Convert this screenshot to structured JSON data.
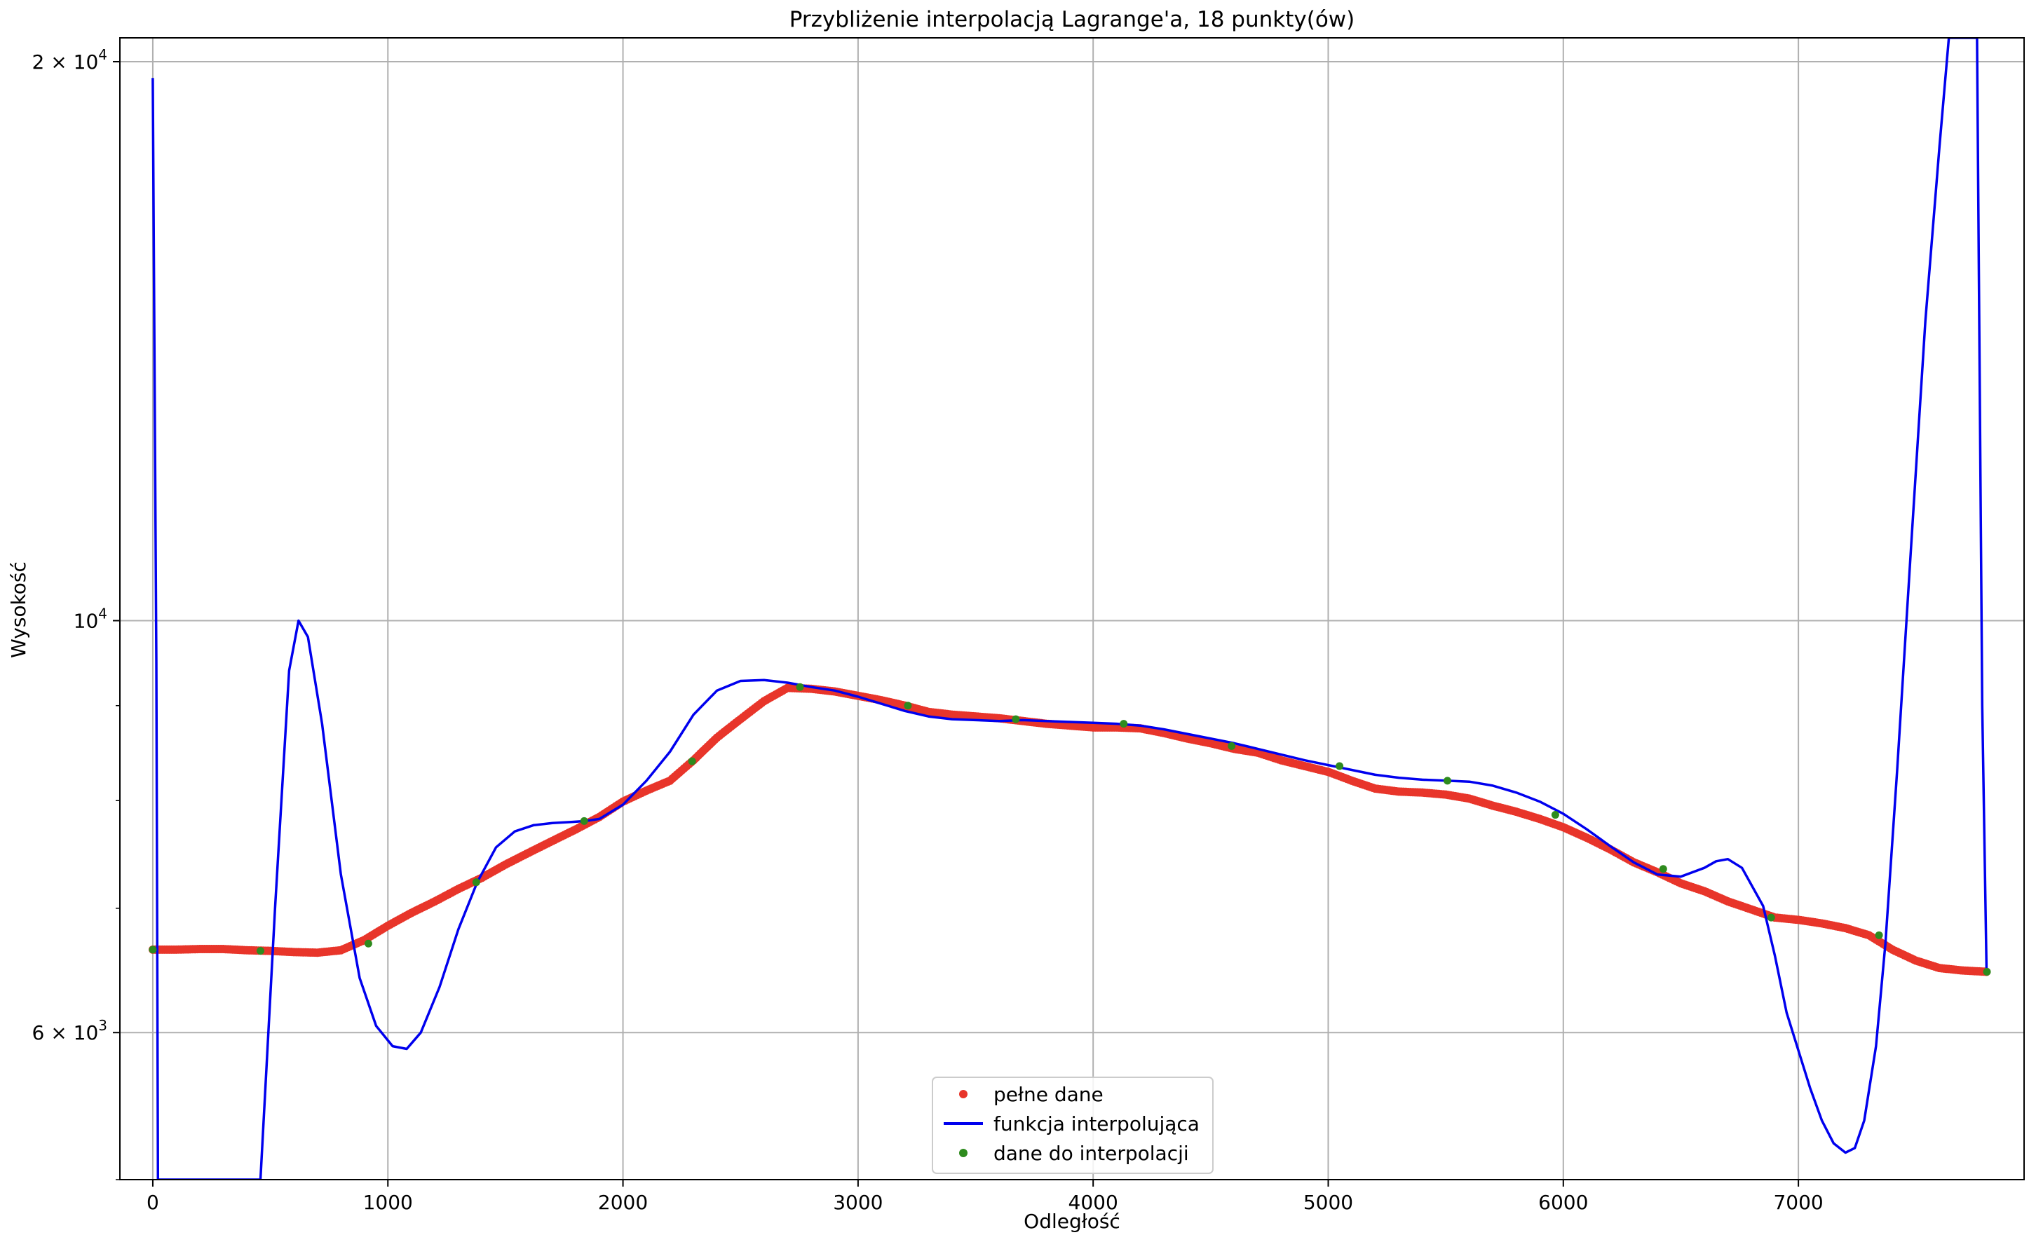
{
  "chart_data": {
    "type": "line",
    "title": "Przybliżenie interpolacją Lagrange'a, 18 punkty(ów)",
    "xlabel": "Odległość",
    "ylabel": "Wysokość",
    "y_scale": "log",
    "xlim": [
      -140,
      7960
    ],
    "ylim": [
      5000,
      20600
    ],
    "grid": true,
    "legend_position": "lower-center",
    "x_ticks": [
      {
        "value": 0,
        "label": "0"
      },
      {
        "value": 1000,
        "label": "1000"
      },
      {
        "value": 2000,
        "label": "2000"
      },
      {
        "value": 3000,
        "label": "3000"
      },
      {
        "value": 4000,
        "label": "4000"
      },
      {
        "value": 5000,
        "label": "5000"
      },
      {
        "value": 6000,
        "label": "6000"
      },
      {
        "value": 7000,
        "label": "7000"
      }
    ],
    "y_ticks": [
      {
        "value": 6000,
        "base": "6 × 10",
        "exp": "3"
      },
      {
        "value": 10000,
        "base": "10",
        "exp": "4"
      },
      {
        "value": 20000,
        "base": "2 × 10",
        "exp": "4"
      }
    ],
    "colors": {
      "full": "#e8352a",
      "interp": "#0000ee",
      "nodes": "#2e8b1e"
    },
    "series": [
      {
        "name": "pełne dane",
        "kind": "points",
        "x": [
          0,
          100,
          200,
          300,
          400,
          500,
          600,
          700,
          800,
          900,
          1000,
          1100,
          1200,
          1300,
          1400,
          1500,
          1600,
          1700,
          1800,
          1900,
          2000,
          2100,
          2200,
          2300,
          2400,
          2500,
          2600,
          2700,
          2800,
          2900,
          3000,
          3100,
          3200,
          3300,
          3400,
          3500,
          3600,
          3700,
          3800,
          3900,
          4000,
          4100,
          4200,
          4300,
          4400,
          4500,
          4600,
          4700,
          4800,
          4900,
          5000,
          5100,
          5200,
          5300,
          5400,
          5500,
          5600,
          5700,
          5800,
          5900,
          6000,
          6100,
          6200,
          6300,
          6400,
          6500,
          6600,
          6700,
          6800,
          6900,
          7000,
          7100,
          7200,
          7300,
          7400,
          7500,
          7600,
          7700,
          7800
        ],
        "y": [
          6650,
          6650,
          6655,
          6655,
          6645,
          6640,
          6630,
          6625,
          6645,
          6730,
          6850,
          6960,
          7060,
          7170,
          7270,
          7390,
          7500,
          7610,
          7720,
          7840,
          7990,
          8100,
          8200,
          8410,
          8650,
          8850,
          9050,
          9200,
          9190,
          9160,
          9110,
          9060,
          9000,
          8930,
          8900,
          8880,
          8860,
          8830,
          8800,
          8780,
          8760,
          8760,
          8750,
          8700,
          8640,
          8590,
          8530,
          8490,
          8410,
          8350,
          8290,
          8200,
          8120,
          8090,
          8080,
          8060,
          8020,
          7950,
          7890,
          7820,
          7740,
          7640,
          7530,
          7410,
          7320,
          7220,
          7150,
          7060,
          6990,
          6920,
          6900,
          6870,
          6830,
          6770,
          6650,
          6560,
          6500,
          6480,
          6470
        ]
      },
      {
        "name": "funkcja interpolująca",
        "kind": "line",
        "x": [
          0,
          15,
          22,
          458,
          520,
          580,
          620,
          660,
          720,
          800,
          880,
          950,
          1020,
          1080,
          1140,
          1220,
          1300,
          1380,
          1460,
          1540,
          1620,
          1700,
          1780,
          1840,
          1900,
          2000,
          2100,
          2200,
          2300,
          2400,
          2500,
          2600,
          2700,
          2800,
          2900,
          3000,
          3100,
          3200,
          3300,
          3400,
          3500,
          3600,
          3700,
          3800,
          3900,
          4000,
          4100,
          4200,
          4300,
          4400,
          4500,
          4600,
          4700,
          4800,
          4900,
          5000,
          5100,
          5200,
          5300,
          5400,
          5500,
          5600,
          5700,
          5800,
          5900,
          6000,
          6100,
          6200,
          6300,
          6400,
          6500,
          6600,
          6650,
          6700,
          6760,
          6850,
          6900,
          6950,
          7050,
          7100,
          7150,
          7200,
          7240,
          7280,
          7330,
          7370,
          7420,
          7480,
          7540,
          7600,
          7640,
          7680,
          7720,
          7760,
          7782,
          7800
        ],
        "y": [
          19600,
          9500,
          5000,
          5000,
          7000,
          9400,
          10000,
          9800,
          8800,
          7300,
          6420,
          6050,
          5900,
          5880,
          6000,
          6350,
          6820,
          7230,
          7550,
          7700,
          7760,
          7780,
          7790,
          7800,
          7820,
          7960,
          8200,
          8500,
          8900,
          9170,
          9280,
          9290,
          9260,
          9210,
          9170,
          9100,
          9020,
          8940,
          8880,
          8850,
          8840,
          8830,
          8840,
          8830,
          8820,
          8810,
          8800,
          8780,
          8740,
          8690,
          8640,
          8590,
          8530,
          8470,
          8410,
          8360,
          8310,
          8260,
          8230,
          8210,
          8200,
          8190,
          8150,
          8080,
          7990,
          7870,
          7720,
          7560,
          7410,
          7300,
          7280,
          7360,
          7420,
          7440,
          7360,
          7020,
          6600,
          6150,
          5600,
          5380,
          5230,
          5170,
          5200,
          5380,
          5900,
          6700,
          8300,
          11000,
          14500,
          18000,
          20600,
          20600,
          20600,
          20600,
          9000,
          6500
        ]
      },
      {
        "name": "dane do interpolacji",
        "kind": "points",
        "x": [
          0,
          458,
          917,
          1376,
          1835,
          2294,
          2753,
          3212,
          3671,
          4130,
          4589,
          5048,
          5507,
          5966,
          6425,
          6884,
          7343,
          7802
        ],
        "y": [
          6650,
          6640,
          6700,
          7230,
          7800,
          8400,
          9210,
          9000,
          8850,
          8800,
          8560,
          8350,
          8200,
          7860,
          7350,
          6920,
          6770,
          6470
        ]
      }
    ]
  }
}
